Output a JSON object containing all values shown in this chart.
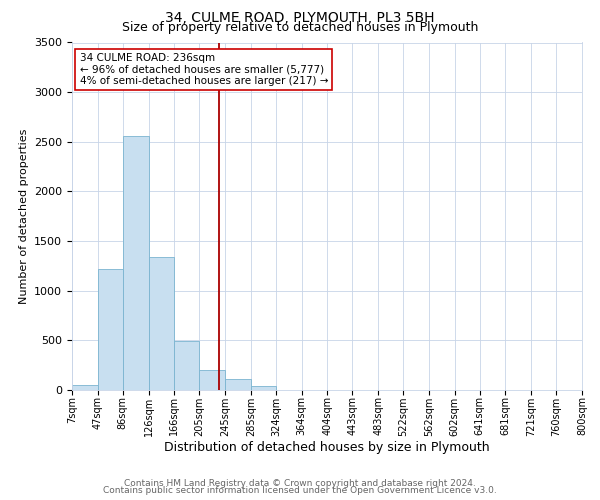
{
  "title": "34, CULME ROAD, PLYMOUTH, PL3 5BH",
  "subtitle": "Size of property relative to detached houses in Plymouth",
  "xlabel": "Distribution of detached houses by size in Plymouth",
  "ylabel": "Number of detached properties",
  "bin_edges": [
    7,
    47,
    86,
    126,
    166,
    205,
    245,
    285,
    324,
    364,
    404,
    443,
    483,
    522,
    562,
    602,
    641,
    681,
    721,
    760,
    800
  ],
  "bin_labels": [
    "7sqm",
    "47sqm",
    "86sqm",
    "126sqm",
    "166sqm",
    "205sqm",
    "245sqm",
    "285sqm",
    "324sqm",
    "364sqm",
    "404sqm",
    "443sqm",
    "483sqm",
    "522sqm",
    "562sqm",
    "602sqm",
    "641sqm",
    "681sqm",
    "721sqm",
    "760sqm",
    "800sqm"
  ],
  "bar_heights": [
    50,
    1220,
    2560,
    1340,
    490,
    200,
    115,
    40,
    5,
    0,
    0,
    2,
    0,
    0,
    0,
    0,
    0,
    0,
    0,
    0
  ],
  "bar_color": "#c8dff0",
  "bar_edge_color": "#7ab4d0",
  "vline_x": 236,
  "vline_color": "#aa0000",
  "ylim": [
    0,
    3500
  ],
  "yticks": [
    0,
    500,
    1000,
    1500,
    2000,
    2500,
    3000,
    3500
  ],
  "annotation_title": "34 CULME ROAD: 236sqm",
  "annotation_line1": "← 96% of detached houses are smaller (5,777)",
  "annotation_line2": "4% of semi-detached houses are larger (217) →",
  "annotation_box_color": "#ffffff",
  "annotation_box_edge": "#cc0000",
  "footnote1": "Contains HM Land Registry data © Crown copyright and database right 2024.",
  "footnote2": "Contains public sector information licensed under the Open Government Licence v3.0.",
  "background_color": "#ffffff",
  "grid_color": "#c8d4e8",
  "title_fontsize": 10,
  "subtitle_fontsize": 9,
  "xlabel_fontsize": 9,
  "ylabel_fontsize": 8,
  "tick_fontsize": 7,
  "annotation_fontsize": 7.5,
  "footnote_fontsize": 6.5
}
